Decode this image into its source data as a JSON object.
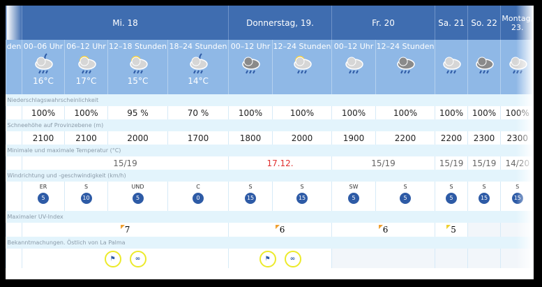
{
  "days": [
    "Mi. 18",
    "Donnerstag, 19.",
    "Fr. 20",
    "Sa. 21",
    "So. 22",
    "Montag, 23."
  ],
  "stub_label": "den",
  "periods": [
    {
      "label": "00–06 Uhr",
      "temp": "16°C",
      "icon": "night-cloud-rain-icon"
    },
    {
      "label": "06–12 Uhr",
      "temp": "17°C",
      "icon": "sun-cloud-rain-icon"
    },
    {
      "label": "12–18 Stunden",
      "temp": "15°C",
      "icon": "sun-cloud-rain-icon"
    },
    {
      "label": "18–24 Stunden",
      "temp": "14°C",
      "icon": "night-cloud-rain-icon"
    },
    {
      "label": "00–12 Uhr",
      "temp": "",
      "icon": "dark-cloud-rain-icon"
    },
    {
      "label": "12–24 Stunden",
      "temp": "",
      "icon": "sun-cloud-rain-icon"
    },
    {
      "label": "00–12 Uhr",
      "temp": "",
      "icon": "cloud-rain-icon"
    },
    {
      "label": "12–24 Stunden",
      "temp": "",
      "icon": "dark-cloud-rain-icon"
    },
    {
      "label": "",
      "temp": "",
      "icon": "cloud-rain-icon"
    },
    {
      "label": "",
      "temp": "",
      "icon": "dark-cloud-rain-icon"
    },
    {
      "label": "",
      "temp": "",
      "icon": "cloud-rain-icon"
    }
  ],
  "rows": {
    "precip_label": "Niederschlagswahrscheinlichkeit",
    "precip": [
      "100%",
      "100%",
      "95 %",
      "70 %",
      "100%",
      "100%",
      "100%",
      "100%",
      "100%",
      "100%",
      "100%"
    ],
    "snow_label": "Schneehöhe auf Provinzebene (m)",
    "snow": [
      "2100",
      "2100",
      "2000",
      "1700",
      "1800",
      "2000",
      "1900",
      "2200",
      "2200",
      "2300",
      "2300"
    ],
    "temp_label": "Minimale und maximale Temperatur (°C)",
    "temps": [
      "15/19",
      "17.12.",
      "15/19",
      "15/19",
      "15/19",
      "14/20"
    ],
    "wind_label": "Windrichtung und -geschwindigkeit (km/h)",
    "wind_dir": [
      "ER",
      "S",
      "UND",
      "C",
      "S",
      "S",
      "SW",
      "S",
      "S",
      "S",
      "S"
    ],
    "wind_speed": [
      "5",
      "10",
      "5",
      "0",
      "15",
      "15",
      "5",
      "5",
      "5",
      "15",
      "15"
    ],
    "uv_label": "Maximaler UV-Index",
    "uv": [
      "7",
      "6",
      "6",
      "5"
    ],
    "ann_label": "Bekanntmachungen. Östlich von La Palma",
    "ann_icons": [
      "wind-warning-icon",
      "waves-warning-icon"
    ]
  },
  "colors": {
    "header": "#3f6db0",
    "subheader": "#8fb8e6",
    "badge": "#2e5ba6",
    "highlight": "#e03030",
    "uv_flag": "#f0a030",
    "ring": "#ecea2a"
  }
}
